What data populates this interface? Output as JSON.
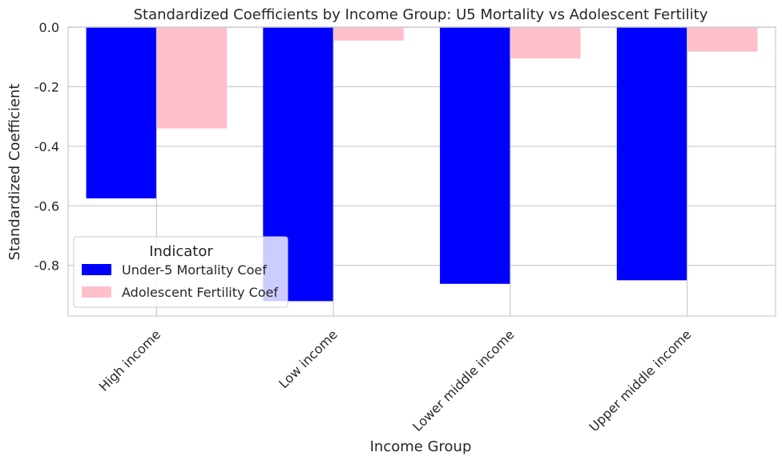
{
  "chart_data": {
    "type": "bar",
    "title": "Standardized Coefficients by Income Group: U5 Mortality vs Adolescent Fertility",
    "xlabel": "Income Group",
    "ylabel": "Standardized Coefficient",
    "categories": [
      "High income",
      "Low income",
      "Lower middle income",
      "Upper middle income"
    ],
    "series": [
      {
        "name": "Under-5 Mortality Coef",
        "values": [
          -0.575,
          -0.92,
          -0.862,
          -0.85
        ],
        "color": "#0000ff"
      },
      {
        "name": "Adolescent Fertility Coef",
        "values": [
          -0.34,
          -0.045,
          -0.105,
          -0.082
        ],
        "color": "#ffc0cb"
      }
    ],
    "ylim": [
      -0.97,
      0.0
    ],
    "yticks": [
      "0.0",
      "-0.2",
      "-0.4",
      "-0.6",
      "-0.8"
    ],
    "ytick_values": [
      0.0,
      -0.2,
      -0.4,
      -0.6,
      -0.8
    ],
    "grid": true,
    "reference_line": 0.0,
    "legend": {
      "title": "Indicator",
      "placement": "lower-left"
    }
  }
}
